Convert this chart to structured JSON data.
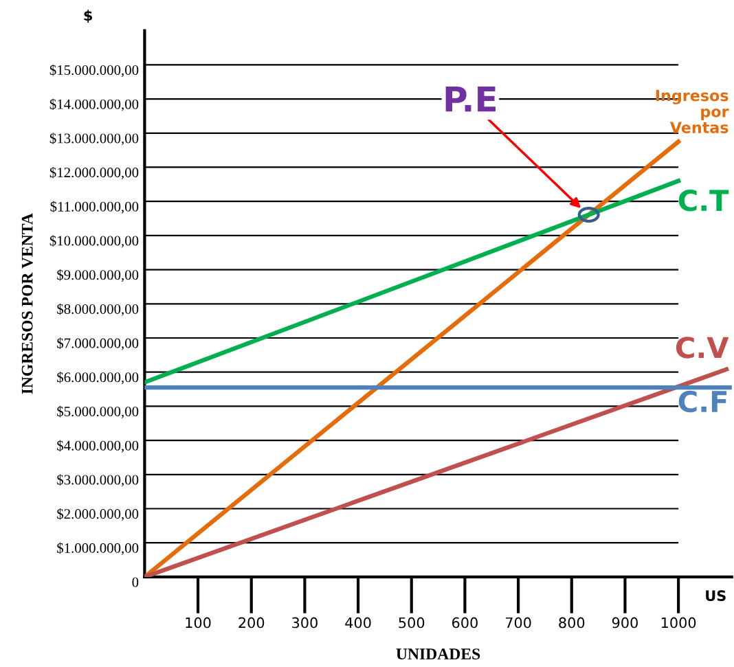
{
  "chart_data": {
    "type": "line",
    "xlabel": "UNIDADES",
    "ylabel": "INGRESOS POR VENTA",
    "xlim": [
      0,
      1100
    ],
    "xticks": [
      100,
      200,
      300,
      400,
      500,
      600,
      700,
      800,
      900,
      1000
    ],
    "ylim": [
      0,
      16000000
    ],
    "yticks": [
      {
        "value": 0,
        "label": "0"
      },
      {
        "value": 1000000,
        "label": "$1.000.000,00"
      },
      {
        "value": 2000000,
        "label": "$2.000.000,00"
      },
      {
        "value": 3000000,
        "label": "$3.000.000,00"
      },
      {
        "value": 4000000,
        "label": "$4.000.000,00"
      },
      {
        "value": 5000000,
        "label": "$5.000.000,00"
      },
      {
        "value": 6000000,
        "label": "$6.000.000,00"
      },
      {
        "value": 7000000,
        "label": "$7.000.000,00"
      },
      {
        "value": 8000000,
        "label": "$8.000.000,00"
      },
      {
        "value": 9000000,
        "label": "$9.000.000,00"
      },
      {
        "value": 10000000,
        "label": "$10.000.000,00"
      },
      {
        "value": 11000000,
        "label": "$11.000.000,00"
      },
      {
        "value": 12000000,
        "label": "$12.000.000,00"
      },
      {
        "value": 13000000,
        "label": "$13.000.000,00"
      },
      {
        "value": 14000000,
        "label": "$14.000.000,00"
      },
      {
        "value": 15000000,
        "label": "$15.000.000,00"
      }
    ],
    "grid": "y",
    "legend": false,
    "marker": "none",
    "line_style": "solid",
    "series": [
      {
        "name": "Ingresos por Ventas",
        "color": "#e46c0a",
        "x": [
          0,
          1000
        ],
        "values": [
          0,
          12750000
        ]
      },
      {
        "name": "C.T",
        "color": "#00b050",
        "x": [
          0,
          1000
        ],
        "values": [
          5700000,
          11600000
        ]
      },
      {
        "name": "C.V",
        "color": "#c0504d",
        "x": [
          0,
          1090
        ],
        "values": [
          0,
          6080000
        ]
      },
      {
        "name": "C.F",
        "color": "#4f81bd",
        "x": [
          0,
          1100
        ],
        "values": [
          5550000,
          5550000
        ]
      }
    ],
    "annotations": [
      "P.E",
      "$",
      "US"
    ]
  }
}
